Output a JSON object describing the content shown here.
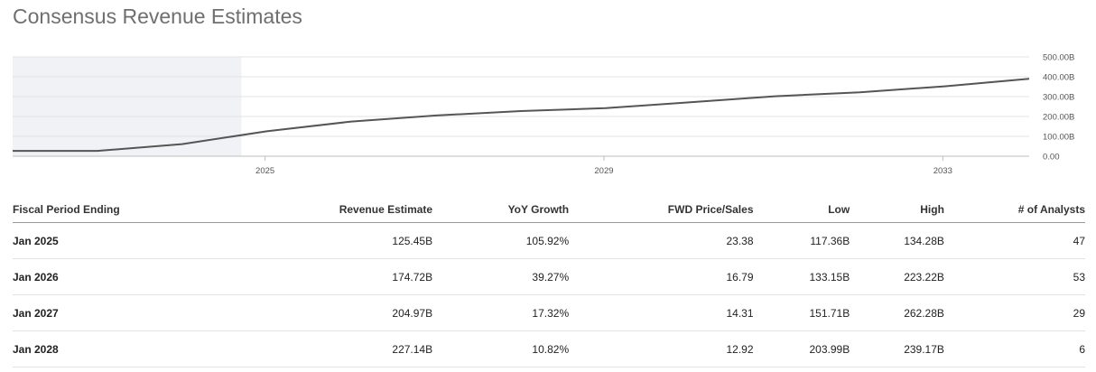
{
  "title": "Consensus Revenue Estimates",
  "chart_data": {
    "type": "line",
    "x": [
      2022.1,
      2023.1,
      2024.1,
      2025.1,
      2026.1,
      2027.1,
      2028.1,
      2029.1,
      2030.1,
      2031.1,
      2032.1,
      2033.1,
      2034.1
    ],
    "y": [
      27,
      27,
      61,
      125.45,
      174.72,
      204.97,
      227.14,
      242,
      272,
      302,
      322,
      352,
      390
    ],
    "y_unit": "B",
    "x_ticks": [
      "2025",
      "2029",
      "2033"
    ],
    "y_ticks": [
      "500.00B",
      "400.00B",
      "300.00B",
      "200.00B",
      "100.00B",
      "0.00"
    ],
    "ylim": [
      0,
      500
    ],
    "grid": true,
    "historical_shading_until": 2024.8,
    "line_color": "#555555",
    "shade_color": "#f1f2f5"
  },
  "table": {
    "headers": [
      "Fiscal Period Ending",
      "Revenue Estimate",
      "YoY Growth",
      "FWD Price/Sales",
      "Low",
      "High",
      "# of Analysts"
    ],
    "rows": [
      [
        "Jan 2025",
        "125.45B",
        "105.92%",
        "23.38",
        "117.36B",
        "134.28B",
        "47"
      ],
      [
        "Jan 2026",
        "174.72B",
        "39.27%",
        "16.79",
        "133.15B",
        "223.22B",
        "53"
      ],
      [
        "Jan 2027",
        "204.97B",
        "17.32%",
        "14.31",
        "151.71B",
        "262.28B",
        "29"
      ],
      [
        "Jan 2028",
        "227.14B",
        "10.82%",
        "12.92",
        "203.99B",
        "239.17B",
        "6"
      ]
    ]
  }
}
